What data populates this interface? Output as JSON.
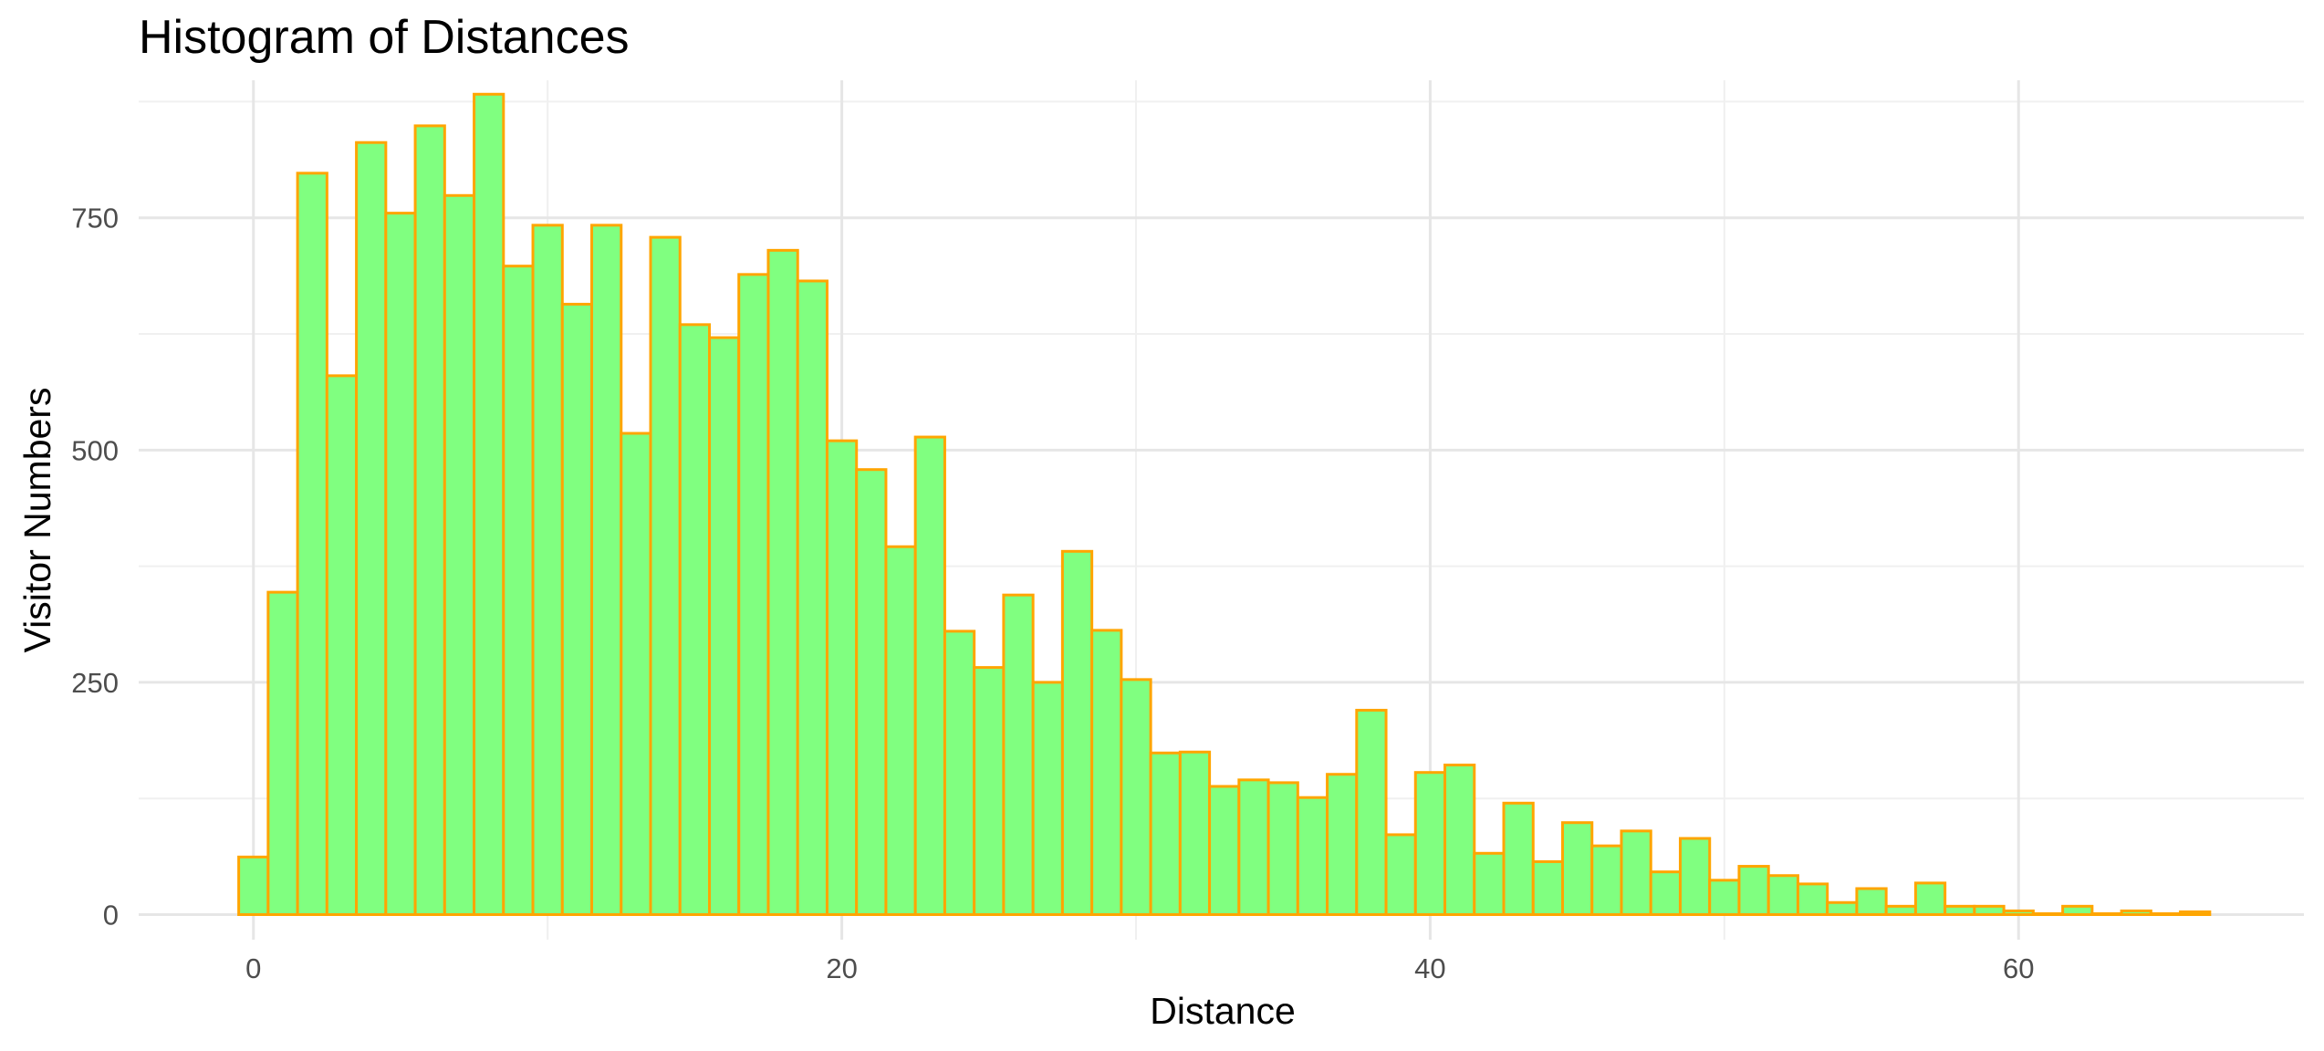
{
  "chart_data": {
    "type": "bar",
    "title": "Histogram of Distances",
    "xlabel": "Distance",
    "ylabel": "Visitor Numbers",
    "bin_width": 1,
    "x_start": -0.5,
    "xlim": [
      -3.9,
      69.7
    ],
    "ylim": [
      -27,
      898
    ],
    "x_ticks": [
      0,
      20,
      40,
      60
    ],
    "y_ticks": [
      0,
      250,
      500,
      750
    ],
    "x_tick_labels": [
      "0",
      "20",
      "40",
      "60"
    ],
    "y_tick_labels": [
      "0",
      "250",
      "500",
      "750"
    ],
    "grid": true,
    "legend": "none",
    "fill_color": "#80ff80",
    "edge_color": "#ffa500",
    "values": [
      62,
      347,
      798,
      580,
      831,
      755,
      849,
      774,
      883,
      698,
      742,
      657,
      742,
      518,
      729,
      635,
      621,
      689,
      715,
      682,
      510,
      479,
      396,
      514,
      305,
      266,
      344,
      250,
      391,
      306,
      253,
      174,
      175,
      138,
      145,
      142,
      126,
      151,
      220,
      86,
      153,
      161,
      66,
      120,
      57,
      99,
      74,
      90,
      46,
      82,
      37,
      52,
      42,
      33,
      13,
      28,
      9,
      34,
      9,
      9,
      4,
      1,
      9,
      1,
      4,
      1,
      3
    ]
  }
}
